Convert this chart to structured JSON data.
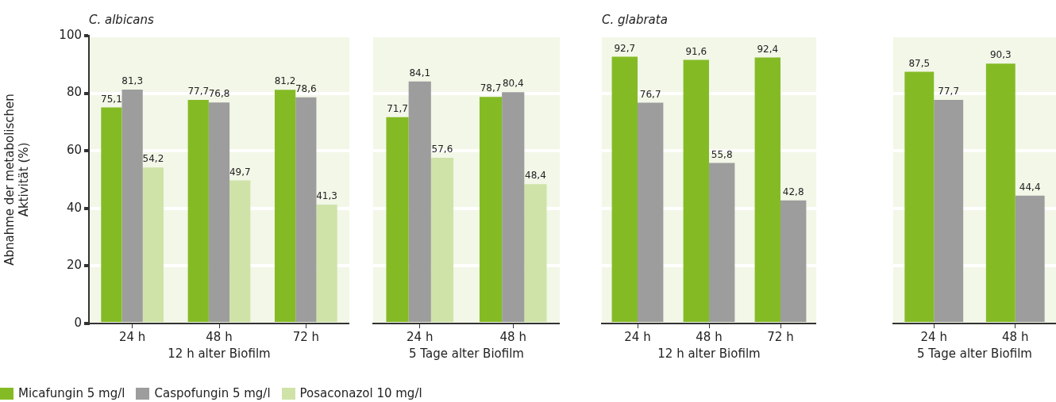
{
  "chart_data": [
    {
      "type": "bar",
      "title": "C. albicans",
      "xlabel": "12 h alter Biofilm",
      "ylabel": "Abnahme der metabolischen Aktivität (%)",
      "categories": [
        "24 h",
        "48 h",
        "72 h"
      ],
      "series": [
        {
          "name": "Micafungin 5 mg/l",
          "color": "#84bb25",
          "values": [
            75.1,
            77.7,
            81.2
          ],
          "value_labels": [
            "75,1",
            "77,7",
            "81,2"
          ]
        },
        {
          "name": "Caspofungin 5 mg/l",
          "color": "#9d9d9d",
          "values": [
            81.3,
            76.8,
            78.6
          ],
          "value_labels": [
            "81,3",
            "76,8",
            "78,6"
          ]
        },
        {
          "name": "Posaconazol 10 mg/l",
          "color": "#cfe3a8",
          "values": [
            54.2,
            49.7,
            41.3
          ],
          "value_labels": [
            "54,2",
            "49,7",
            "41,3"
          ]
        }
      ],
      "ylim": [
        0,
        100
      ],
      "yticks": [
        0,
        20,
        40,
        60,
        80,
        100
      ],
      "grid": "y",
      "legend": "bottom"
    },
    {
      "type": "bar",
      "xlabel": "5 Tage alter Biofilm",
      "categories": [
        "24 h",
        "48 h"
      ],
      "series": [
        {
          "color": "#84bb25",
          "values": [
            71.7,
            78.7
          ],
          "value_labels": [
            "71,7",
            "78,7"
          ]
        },
        {
          "color": "#9d9d9d",
          "values": [
            84.1,
            80.4
          ],
          "value_labels": [
            "84,1",
            "80,4"
          ]
        },
        {
          "color": "#cfe3a8",
          "values": [
            57.6,
            48.4
          ],
          "value_labels": [
            "57,6",
            "48,4"
          ]
        }
      ],
      "ylim": [
        0,
        100
      ],
      "yticks": [
        0,
        20,
        40,
        60,
        80,
        100
      ],
      "grid": "y",
      "tick_labels": "x"
    },
    {
      "type": "bar",
      "title": "C. glabrata",
      "xlabel": "12 h alter Biofilm",
      "categories": [
        "24 h",
        "48 h",
        "72 h"
      ],
      "series": [
        {
          "color": "#84bb25",
          "values": [
            92.7,
            91.6,
            92.4
          ],
          "value_labels": [
            "92,7",
            "91,6",
            "92,4"
          ]
        },
        {
          "color": "#9d9d9d",
          "values": [
            76.7,
            55.8,
            42.8
          ],
          "value_labels": [
            "76,7",
            "55,8",
            "42,8"
          ]
        }
      ],
      "ylim": [
        0,
        100
      ],
      "yticks": [
        0,
        20,
        40,
        60,
        80,
        100
      ],
      "grid": "y",
      "tick_labels": "x"
    },
    {
      "type": "bar",
      "xlabel": "5 Tage alter Biofilm",
      "categories": [
        "24 h",
        "48 h"
      ],
      "series": [
        {
          "color": "#84bb25",
          "values": [
            87.5,
            90.3
          ],
          "value_labels": [
            "87,5",
            "90,3"
          ]
        },
        {
          "color": "#9d9d9d",
          "values": [
            77.7,
            44.4
          ],
          "value_labels": [
            "77,7",
            "44,4"
          ]
        }
      ],
      "ylim": [
        0,
        100
      ],
      "yticks": [
        0,
        20,
        40,
        60,
        80,
        100
      ],
      "grid": "y",
      "tick_labels": "x"
    }
  ]
}
